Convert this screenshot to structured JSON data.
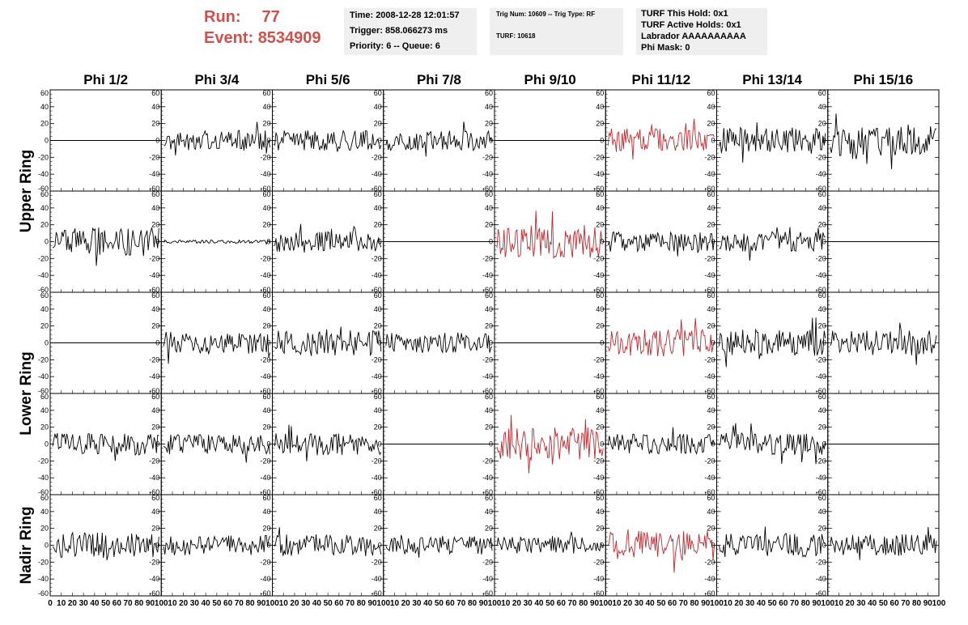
{
  "header": {
    "run_label": "Run:",
    "run_value": "77",
    "event_label": "Event:",
    "event_value": "8534909",
    "color": "#d0504c"
  },
  "info_time": {
    "time": "Time: 2008-12-28 12:01:57",
    "trigger": "Trigger: 858.066273 ms",
    "priority": "Priority: 6 -- Queue: 6"
  },
  "info_trig": {
    "trig": "Trig Num: 10609 -- Trig Type: RF",
    "turf": "TURF: 10618"
  },
  "info_turf": {
    "this_hold": "TURF This Hold: 0x1",
    "active_holds": "TURF Active Holds: 0x1",
    "labrador": "Labrador AAAAAAAAAA",
    "phi_mask": "Phi Mask: 0"
  },
  "chart_data": {
    "type": "line",
    "columns": [
      "Phi 1/2",
      "Phi 3/4",
      "Phi 5/6",
      "Phi 7/8",
      "Phi 9/10",
      "Phi 11/12",
      "Phi 13/14",
      "Phi 15/16"
    ],
    "ring_labels": [
      "Upper Ring",
      "Lower Ring",
      "Nadir Ring"
    ],
    "ylim": [
      -60,
      60
    ],
    "yticks": [
      -60,
      -40,
      -20,
      0,
      20,
      40,
      60
    ],
    "xlim": [
      0,
      100
    ],
    "xticks": [
      0,
      10,
      20,
      30,
      40,
      50,
      60,
      70,
      80,
      90,
      100
    ],
    "trace_color_normal": "#000000",
    "trace_color_trigger": "#c0282e",
    "trace_points_approx": 90,
    "panels": [
      {
        "row": 0,
        "col": 0,
        "amp": 0,
        "red": false
      },
      {
        "row": 0,
        "col": 1,
        "amp": 12,
        "red": false
      },
      {
        "row": 0,
        "col": 2,
        "amp": 12,
        "red": false
      },
      {
        "row": 0,
        "col": 3,
        "amp": 12,
        "red": false
      },
      {
        "row": 0,
        "col": 4,
        "amp": 0,
        "red": false
      },
      {
        "row": 0,
        "col": 5,
        "amp": 14,
        "red": true
      },
      {
        "row": 0,
        "col": 6,
        "amp": 16,
        "red": false
      },
      {
        "row": 0,
        "col": 7,
        "amp": 18,
        "red": false
      },
      {
        "row": 1,
        "col": 0,
        "amp": 17,
        "red": false
      },
      {
        "row": 1,
        "col": 1,
        "amp": 2,
        "red": false
      },
      {
        "row": 1,
        "col": 2,
        "amp": 12,
        "red": false
      },
      {
        "row": 1,
        "col": 3,
        "amp": 0,
        "red": false
      },
      {
        "row": 1,
        "col": 4,
        "amp": 20,
        "red": true
      },
      {
        "row": 1,
        "col": 5,
        "amp": 12,
        "red": false
      },
      {
        "row": 1,
        "col": 6,
        "amp": 12,
        "red": false
      },
      {
        "row": 1,
        "col": 7,
        "amp": 0,
        "red": false
      },
      {
        "row": 2,
        "col": 0,
        "amp": 0,
        "red": false
      },
      {
        "row": 2,
        "col": 1,
        "amp": 13,
        "red": false
      },
      {
        "row": 2,
        "col": 2,
        "amp": 16,
        "red": false
      },
      {
        "row": 2,
        "col": 3,
        "amp": 12,
        "red": false
      },
      {
        "row": 2,
        "col": 4,
        "amp": 0,
        "red": false
      },
      {
        "row": 2,
        "col": 5,
        "amp": 16,
        "red": true
      },
      {
        "row": 2,
        "col": 6,
        "amp": 16,
        "red": false
      },
      {
        "row": 2,
        "col": 7,
        "amp": 15,
        "red": false
      },
      {
        "row": 3,
        "col": 0,
        "amp": 13,
        "red": false
      },
      {
        "row": 3,
        "col": 1,
        "amp": 12,
        "red": false
      },
      {
        "row": 3,
        "col": 2,
        "amp": 13,
        "red": false
      },
      {
        "row": 3,
        "col": 3,
        "amp": 0,
        "red": false
      },
      {
        "row": 3,
        "col": 4,
        "amp": 20,
        "red": true
      },
      {
        "row": 3,
        "col": 5,
        "amp": 12,
        "red": false
      },
      {
        "row": 3,
        "col": 6,
        "amp": 13,
        "red": false
      },
      {
        "row": 3,
        "col": 7,
        "amp": 0,
        "red": false
      },
      {
        "row": 4,
        "col": 0,
        "amp": 15,
        "red": false
      },
      {
        "row": 4,
        "col": 1,
        "amp": 12,
        "red": false
      },
      {
        "row": 4,
        "col": 2,
        "amp": 13,
        "red": false
      },
      {
        "row": 4,
        "col": 3,
        "amp": 11,
        "red": false
      },
      {
        "row": 4,
        "col": 4,
        "amp": 10,
        "red": false
      },
      {
        "row": 4,
        "col": 5,
        "amp": 18,
        "red": true
      },
      {
        "row": 4,
        "col": 6,
        "amp": 14,
        "red": false
      },
      {
        "row": 4,
        "col": 7,
        "amp": 13,
        "red": false
      }
    ]
  }
}
